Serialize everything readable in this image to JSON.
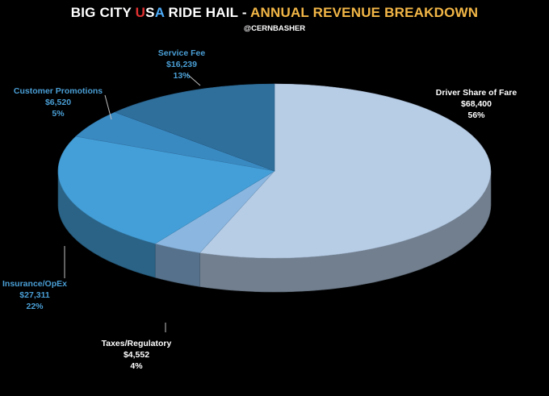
{
  "title": {
    "part1": "BIG CITY ",
    "u": "U",
    "s": "S",
    "a": "A",
    "part2": " RIDE HAIL - ",
    "part3": "ANNUAL REVENUE BREAKDOWN",
    "colors": {
      "white": "#ffffff",
      "red": "#e03131",
      "blue": "#4dabf7",
      "orange": "#f2b646"
    }
  },
  "subtitle": "@CERNBASHER",
  "chart_data": {
    "type": "pie",
    "title": "BIG CITY USA RIDE HAIL - ANNUAL REVENUE BREAKDOWN",
    "slices": [
      {
        "label": "Driver Share of Fare",
        "value": 68400,
        "value_label": "$68,400",
        "pct_label": "56%",
        "color": "#b7cde6",
        "label_color": "#ffffff"
      },
      {
        "label": "Taxes/Regulatory",
        "value": 4552,
        "value_label": "$4,552",
        "pct_label": "4%",
        "color": "#8ab6e0",
        "label_color": "#ffffff"
      },
      {
        "label": "Insurance/OpEx",
        "value": 27311,
        "value_label": "$27,311",
        "pct_label": "22%",
        "color": "#449fd8",
        "label_color": "#4a9fd6"
      },
      {
        "label": "Customer Promotions",
        "value": 6520,
        "value_label": "$6,520",
        "pct_label": "5%",
        "color": "#3a8ac2",
        "label_color": "#4a9fd6"
      },
      {
        "label": "Service Fee",
        "value": 16239,
        "value_label": "$16,239",
        "pct_label": "13%",
        "color": "#2f6f9c",
        "label_color": "#4a9fd6"
      }
    ],
    "style": "3d-tilted",
    "legend": "none"
  }
}
